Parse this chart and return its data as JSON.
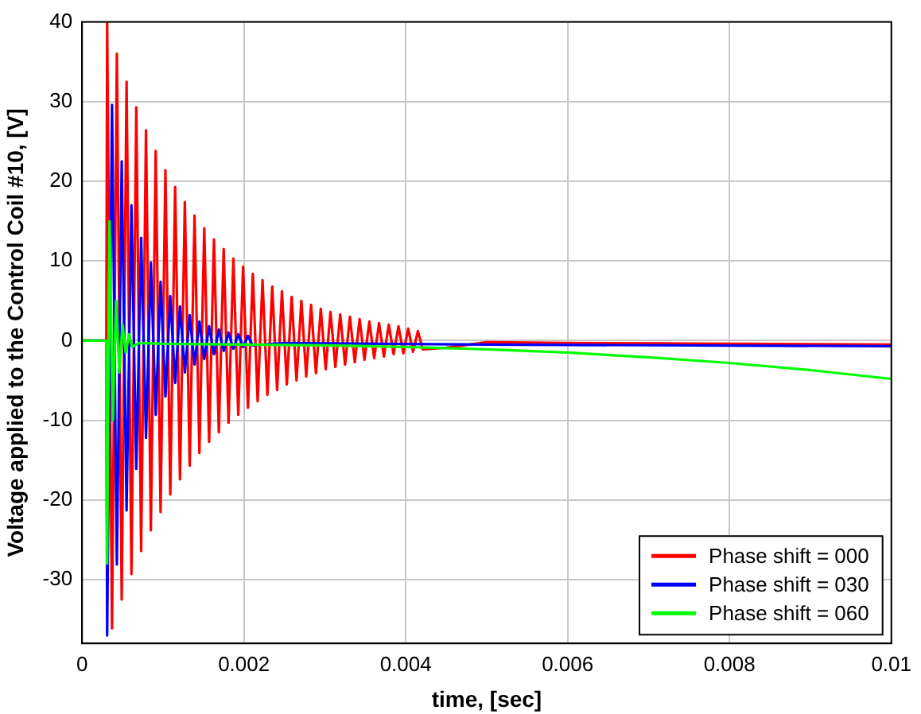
{
  "chart_data": {
    "type": "line",
    "xlabel": "time, [sec]",
    "ylabel": "Voltage applied to the Control Coil #10, [V]",
    "xlim": [
      0,
      0.01
    ],
    "xticks": [
      0,
      0.002,
      0.004,
      0.006,
      0.008,
      0.01
    ],
    "ylim": [
      -38,
      40
    ],
    "yticks": [
      -30,
      -20,
      -10,
      0,
      10,
      20,
      30,
      40
    ],
    "grid": true,
    "legend": "bottom right",
    "marker": "none",
    "line_style": "solid",
    "series": [
      {
        "name": "Phase shift = 000",
        "color": "#ff0000",
        "x": [
          0,
          0.0003,
          0.00031,
          0.00037,
          0.00043,
          0.00049,
          0.00055,
          0.00061,
          0.00067,
          0.00073,
          0.00079,
          0.00085,
          0.00091,
          0.00097,
          0.00103,
          0.00109,
          0.00115,
          0.00121,
          0.00127,
          0.00133,
          0.00139,
          0.00145,
          0.00151,
          0.00157,
          0.00163,
          0.00169,
          0.00175,
          0.00181,
          0.00187,
          0.00193,
          0.00199,
          0.00205,
          0.00211,
          0.00217,
          0.00223,
          0.00229,
          0.00235,
          0.00241,
          0.00247,
          0.00253,
          0.00259,
          0.00265,
          0.00271,
          0.00277,
          0.00283,
          0.00289,
          0.00295,
          0.00301,
          0.00307,
          0.00313,
          0.00319,
          0.00325,
          0.00331,
          0.00337,
          0.00343,
          0.00349,
          0.00355,
          0.00361,
          0.00367,
          0.00373,
          0.00379,
          0.00385,
          0.00391,
          0.00397,
          0.00403,
          0.00409,
          0.00415,
          0.00421,
          0.0045,
          0.005,
          0.006,
          0.008,
          0.01
        ],
        "values": [
          0,
          0,
          40,
          -36.1,
          36,
          -32.5,
          32.5,
          -29.3,
          29.3,
          -26.4,
          26.4,
          -23.8,
          23.8,
          -21.5,
          21.4,
          -19.3,
          19.3,
          -17.4,
          17.4,
          -15.7,
          15.7,
          -14.1,
          14.1,
          -12.7,
          12.7,
          -11.5,
          11.5,
          -10.3,
          10.3,
          -9.3,
          9.3,
          -8.4,
          8.4,
          -7.6,
          7.6,
          -6.8,
          6.8,
          -6.2,
          6.2,
          -5.5,
          5.5,
          -5,
          5,
          -4.5,
          4.5,
          -4.1,
          4,
          -3.6,
          3.6,
          -3.3,
          3.3,
          -3,
          3,
          -2.7,
          2.7,
          -2.4,
          2.4,
          -2.2,
          2.2,
          -2,
          2,
          -1.7,
          1.8,
          -1.6,
          1.5,
          -1.4,
          1.2,
          -1.1,
          -0.9,
          -0.2,
          -0.3,
          -0.4,
          -0.5
        ]
      },
      {
        "name": "Phase shift = 030",
        "color": "#0000ff",
        "x": [
          0,
          0.0003,
          0.00031,
          0.00037,
          0.00043,
          0.00049,
          0.00055,
          0.00061,
          0.00067,
          0.00073,
          0.00079,
          0.00085,
          0.00091,
          0.00097,
          0.00103,
          0.00109,
          0.00115,
          0.00121,
          0.00127,
          0.00133,
          0.00139,
          0.00145,
          0.00151,
          0.00157,
          0.00163,
          0.00169,
          0.00175,
          0.00181,
          0.00187,
          0.00193,
          0.00199,
          0.00205,
          0.00211,
          0.0025,
          0.005,
          0.01
        ],
        "values": [
          0,
          0,
          -37,
          29.6,
          -28.1,
          22.5,
          -21.3,
          17,
          -16.1,
          12.9,
          -12.2,
          9.8,
          -9.3,
          7.4,
          -7,
          5.6,
          -5.3,
          4.3,
          -4,
          3.2,
          -3,
          2.4,
          -2.3,
          1.8,
          -1.7,
          1.4,
          -1.3,
          1,
          -1,
          0.8,
          -0.8,
          0.6,
          -0.6,
          -0.3,
          -0.5,
          -0.7
        ]
      },
      {
        "name": "Phase shift = 060",
        "color": "#00ff00",
        "x": [
          0,
          0.0003,
          0.00031,
          0.00034,
          0.00038,
          0.00042,
          0.00046,
          0.0005,
          0.00054,
          0.00058,
          0.00062,
          0.0007,
          0.001,
          0.002,
          0.003,
          0.004,
          0.005,
          0.006,
          0.007,
          0.008,
          0.009,
          0.01
        ],
        "values": [
          0,
          0,
          -28,
          15,
          -10,
          5,
          -4,
          2,
          -1.5,
          0.8,
          -0.8,
          -0.3,
          -0.4,
          -0.5,
          -0.6,
          -0.8,
          -1.1,
          -1.5,
          -2.1,
          -2.8,
          -3.7,
          -4.8
        ]
      }
    ]
  }
}
